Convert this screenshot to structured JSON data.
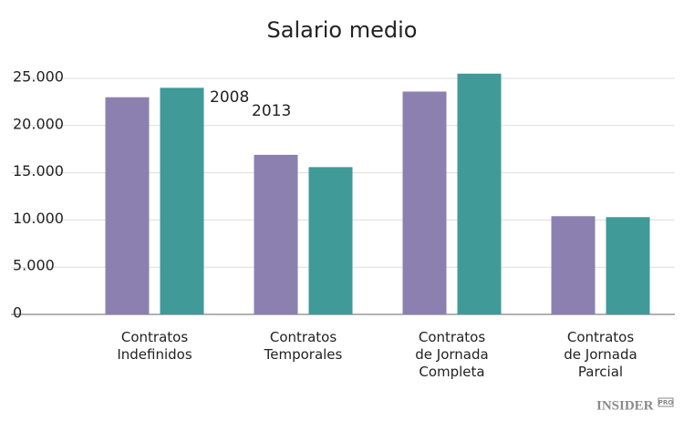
{
  "chart_data": {
    "type": "bar",
    "title": "Salario medio",
    "categories": [
      [
        "Contratos",
        "Indefinidos"
      ],
      [
        "Contratos",
        "Temporales"
      ],
      [
        "Contratos",
        "de Jornada",
        "Completa"
      ],
      [
        "Contratos",
        "de Jornada",
        "Parcial"
      ]
    ],
    "series": [
      {
        "name": "2008",
        "color": "#8c80b0",
        "values": [
          23000,
          16900,
          23600,
          10400
        ]
      },
      {
        "name": "2013",
        "color": "#3f9a98",
        "values": [
          24000,
          15600,
          25500,
          10300
        ]
      }
    ],
    "ylim": [
      0,
      27000
    ],
    "yticks": [
      0,
      {
        "value": 5000,
        "label": "5.000"
      },
      {
        "value": 10000,
        "label": "10.000"
      },
      {
        "value": 15000,
        "label": "15.000"
      },
      {
        "value": 20000,
        "label": "20.000"
      },
      {
        "value": 25000,
        "label": "25.000"
      }
    ],
    "grid": true,
    "brand": {
      "name": "INSIDER",
      "badge": "PRO"
    }
  }
}
